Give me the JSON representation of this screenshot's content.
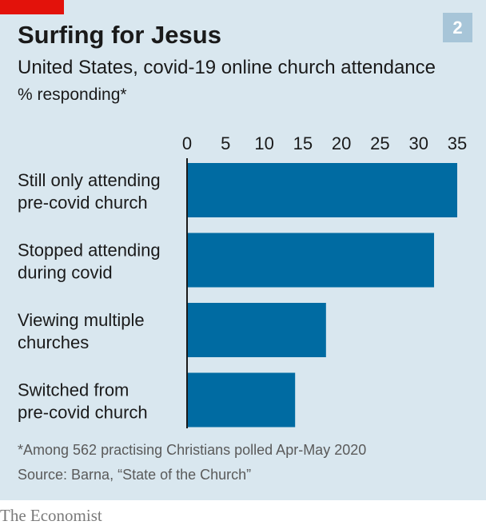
{
  "header": {
    "title": "Surfing for Jesus",
    "chart_number": "2",
    "subtitle": "United States, covid-19 online church attendance",
    "unit_label": "% responding*"
  },
  "footer": {
    "footnote": "*Among 562 practising Christians polled Apr-May 2020",
    "source": "Source: Barna, “State of the Church”",
    "brand": "The Economist"
  },
  "chart_data": {
    "type": "bar",
    "orientation": "horizontal",
    "categories": [
      [
        "Still only attending",
        "pre-covid church"
      ],
      [
        "Stopped attending",
        "during covid"
      ],
      [
        "Viewing multiple",
        "churches"
      ],
      [
        "Switched from",
        "pre-covid church"
      ]
    ],
    "values": [
      35,
      32,
      18,
      14
    ],
    "xlim": [
      0,
      35
    ],
    "ticks": [
      0,
      5,
      10,
      15,
      20,
      25,
      30,
      35
    ],
    "axis_position": "top",
    "grid": false,
    "legend": "none",
    "colors": {
      "bar": "#006ba2",
      "panel": "#d9e7ef",
      "accent": "#e3120b",
      "badge": "#a7c5d8"
    }
  }
}
